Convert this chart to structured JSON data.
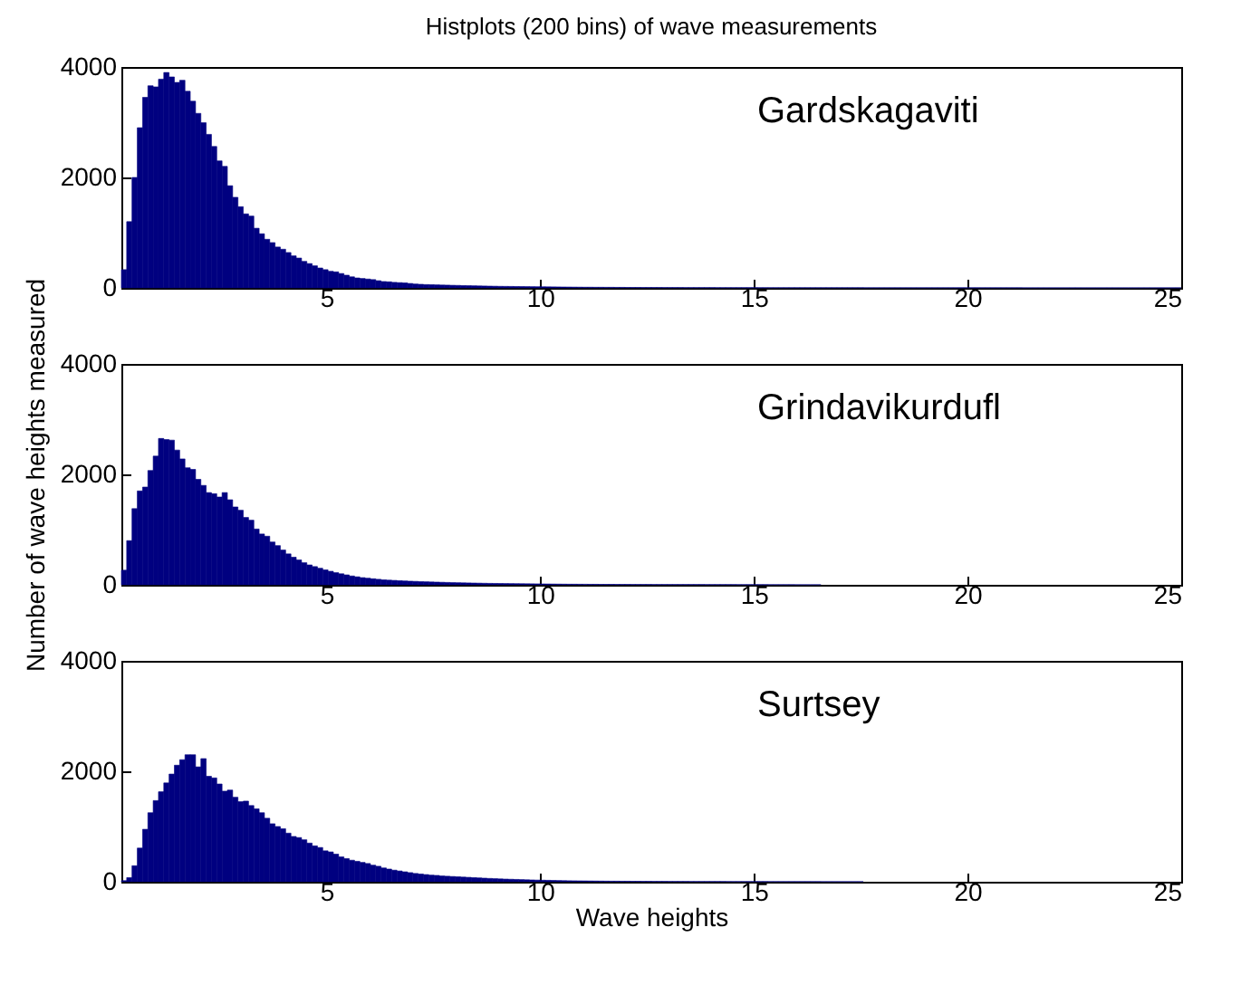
{
  "chart_data": [
    {
      "type": "histogram",
      "title": "Histplots (200 bins) of wave measurements",
      "annotations": [
        "Gardskagaviti"
      ],
      "color": "#000080",
      "xlim": [
        0.2,
        25
      ],
      "xticks": [
        5,
        10,
        15,
        20,
        25
      ],
      "ylim": [
        0,
        4000
      ],
      "yticks": [
        0,
        2000,
        4000
      ],
      "bins": [
        0.2,
        0.324,
        0.448,
        0.572,
        0.696,
        0.82,
        0.944,
        1.068,
        1.192,
        1.316,
        1.44,
        1.564,
        1.688,
        1.812,
        1.936,
        2.06,
        2.184,
        2.308,
        2.432,
        2.556,
        2.68,
        2.804,
        2.928,
        3.052,
        3.176,
        3.3,
        3.424,
        3.548,
        3.672,
        3.796,
        3.92,
        4.044,
        4.168,
        4.292,
        4.416,
        4.54,
        4.664,
        4.788,
        4.912,
        5.036,
        5.16,
        5.284,
        5.408,
        5.532,
        5.656,
        5.78,
        5.904,
        6.028,
        6.152,
        6.276,
        6.4,
        6.524,
        6.648,
        6.772,
        6.896,
        7.02,
        7.144,
        7.268,
        7.392,
        7.516,
        7.64,
        7.764,
        7.888,
        8.012,
        8.136,
        8.26,
        8.384,
        8.508,
        8.632,
        8.756,
        8.88,
        9.004,
        9.128,
        9.252,
        9.376,
        9.5,
        9.624,
        9.748,
        9.872,
        9.996,
        10.12,
        10.244,
        10.368,
        10.492,
        10.616,
        10.74,
        10.864,
        10.988,
        11.112,
        11.236,
        11.36,
        11.484,
        11.608,
        11.732,
        11.856,
        11.98,
        12.104,
        12.228,
        12.352,
        12.476,
        12.6,
        12.724,
        12.848,
        12.972,
        13.096,
        13.22,
        13.344,
        13.468,
        13.592,
        13.716,
        13.84,
        13.964,
        14.088,
        14.212,
        14.336,
        14.46,
        14.584,
        14.708,
        14.832,
        14.956,
        15.08,
        15.204,
        15.328,
        15.452,
        15.576,
        15.7,
        15.824,
        15.948,
        16.072,
        16.196,
        16.32,
        16.444,
        16.568,
        16.692,
        16.816,
        16.94,
        17.064,
        17.188,
        17.312,
        17.436,
        17.56,
        17.684,
        17.808,
        17.932,
        18.056,
        18.18,
        18.304,
        18.428,
        18.552,
        18.676,
        18.8,
        18.924,
        19.048,
        19.172,
        19.296,
        19.42,
        19.544,
        19.668,
        19.792,
        19.916,
        20.04,
        20.164,
        20.288,
        20.412,
        20.536,
        20.66,
        20.784,
        20.908,
        21.032,
        21.156,
        21.28,
        21.404,
        21.528,
        21.652,
        21.776,
        21.9,
        22.024,
        22.148,
        22.272,
        22.396,
        22.52,
        22.644,
        22.768,
        22.892,
        23.016,
        23.14,
        23.264,
        23.388,
        23.512,
        23.636,
        23.76,
        23.884,
        24.008,
        24.132,
        24.256,
        24.38,
        24.504,
        24.628,
        24.752,
        24.876,
        25
      ],
      "values": [
        330,
        1200,
        2000,
        2900,
        3450,
        3660,
        3640,
        3780,
        3900,
        3820,
        3720,
        3760,
        3560,
        3380,
        3160,
        2990,
        2780,
        2560,
        2300,
        2200,
        1850,
        1640,
        1470,
        1340,
        1300,
        1080,
        980,
        880,
        820,
        740,
        700,
        640,
        580,
        540,
        480,
        440,
        400,
        360,
        330,
        300,
        290,
        260,
        230,
        200,
        180,
        170,
        160,
        150,
        130,
        115,
        110,
        100,
        95,
        90,
        80,
        70,
        65,
        60,
        58,
        55,
        52,
        50,
        47,
        45,
        42,
        40,
        38,
        36,
        34,
        32,
        30,
        28,
        27,
        26,
        25,
        24,
        23,
        22,
        21,
        20,
        19,
        18,
        17,
        16,
        15,
        14,
        13,
        12,
        12,
        11,
        11,
        10,
        10,
        9,
        9,
        8,
        8,
        8,
        7,
        7,
        7,
        7,
        6,
        6,
        6,
        6,
        5,
        5,
        5,
        5,
        5,
        5,
        4,
        4,
        4,
        4,
        4,
        4,
        4,
        4,
        3,
        3,
        3,
        3,
        3,
        3,
        3,
        3,
        3,
        3,
        3,
        3,
        3,
        3,
        3,
        3,
        3,
        3,
        3,
        3,
        2,
        2,
        2,
        2,
        2,
        2,
        2,
        2,
        2,
        2,
        2,
        2,
        2,
        2,
        2,
        2,
        2,
        2,
        2,
        2,
        2,
        2,
        2,
        2,
        2,
        2,
        2,
        2,
        2,
        2,
        1,
        1,
        1,
        1,
        1,
        1,
        1,
        1,
        1,
        1,
        1,
        1,
        1,
        1,
        1,
        1,
        1,
        1,
        1,
        1,
        1,
        1,
        1,
        1,
        1,
        1,
        1,
        1,
        1,
        1
      ]
    },
    {
      "type": "histogram",
      "ylabel": "Number of wave heights measured",
      "annotations": [
        "Grindavikurdufl"
      ],
      "color": "#000080",
      "xlim": [
        0.2,
        25
      ],
      "xticks": [
        5,
        10,
        15,
        20,
        25
      ],
      "ylim": [
        0,
        4000
      ],
      "yticks": [
        0,
        2000,
        4000
      ],
      "bins": [
        0.2,
        0.324,
        0.448,
        0.572,
        0.696,
        0.82,
        0.944,
        1.068,
        1.192,
        1.316,
        1.44,
        1.564,
        1.688,
        1.812,
        1.936,
        2.06,
        2.184,
        2.308,
        2.432,
        2.556,
        2.68,
        2.804,
        2.928,
        3.052,
        3.176,
        3.3,
        3.424,
        3.548,
        3.672,
        3.796,
        3.92,
        4.044,
        4.168,
        4.292,
        4.416,
        4.54,
        4.664,
        4.788,
        4.912,
        5.036,
        5.16,
        5.284,
        5.408,
        5.532,
        5.656,
        5.78,
        5.904,
        6.028,
        6.152,
        6.276,
        6.4,
        6.524,
        6.648,
        6.772,
        6.896,
        7.02,
        7.144,
        7.268,
        7.392,
        7.516,
        7.64,
        7.764,
        7.888,
        8.012,
        8.136,
        8.26,
        8.384,
        8.508,
        8.632,
        8.756,
        8.88,
        9.004,
        9.128,
        9.252,
        9.376,
        9.5,
        9.624,
        9.748,
        9.872,
        9.996,
        10.12,
        10.244,
        10.368,
        10.492,
        10.616,
        10.74,
        10.864,
        10.988,
        11.112,
        11.236,
        11.36,
        11.484,
        11.608,
        11.732,
        11.856,
        11.98,
        12.104,
        12.228,
        12.352,
        12.476,
        12.6,
        12.724,
        12.848,
        12.972,
        13.096,
        13.22,
        13.344,
        13.468,
        13.592,
        13.716,
        13.84,
        13.964,
        14.088,
        14.212,
        14.336,
        14.46,
        14.584,
        14.708,
        14.832,
        14.956,
        15.08,
        15.204,
        15.328,
        15.452,
        15.576,
        15.7,
        15.824,
        15.948,
        16.072,
        16.196,
        16.32,
        16.444,
        16.568
      ],
      "values": [
        265,
        800,
        1380,
        1700,
        1770,
        2070,
        2330,
        2650,
        2630,
        2620,
        2440,
        2280,
        2120,
        2090,
        1910,
        1800,
        1670,
        1650,
        1590,
        1670,
        1540,
        1410,
        1350,
        1220,
        1170,
        1010,
        920,
        880,
        775,
        710,
        630,
        560,
        500,
        450,
        400,
        360,
        330,
        300,
        270,
        245,
        220,
        200,
        180,
        160,
        145,
        130,
        120,
        110,
        100,
        90,
        85,
        80,
        75,
        70,
        66,
        62,
        58,
        55,
        52,
        49,
        46,
        43,
        40,
        38,
        36,
        34,
        32,
        30,
        28,
        26,
        25,
        24,
        23,
        22,
        21,
        20,
        19,
        18,
        17,
        16,
        15,
        14,
        13,
        12,
        11,
        11,
        10,
        10,
        9,
        9,
        8,
        8,
        8,
        7,
        7,
        7,
        6,
        6,
        6,
        6,
        5,
        5,
        5,
        5,
        5,
        5,
        5,
        5,
        5,
        5,
        4,
        4,
        4,
        4,
        4,
        4,
        3,
        3,
        3,
        3,
        3,
        3,
        2,
        2,
        2,
        2,
        2,
        1,
        1,
        1,
        1,
        1
      ]
    },
    {
      "type": "histogram",
      "xlabel": "Wave heights",
      "annotations": [
        "Surtsey"
      ],
      "color": "#000080",
      "xlim": [
        0.2,
        25
      ],
      "xticks": [
        5,
        10,
        15,
        20,
        25
      ],
      "ylim": [
        0,
        4000
      ],
      "yticks": [
        0,
        2000,
        4000
      ],
      "bins": [
        0.2,
        0.324,
        0.448,
        0.572,
        0.696,
        0.82,
        0.944,
        1.068,
        1.192,
        1.316,
        1.44,
        1.564,
        1.688,
        1.812,
        1.936,
        2.06,
        2.184,
        2.308,
        2.432,
        2.556,
        2.68,
        2.804,
        2.928,
        3.052,
        3.176,
        3.3,
        3.424,
        3.548,
        3.672,
        3.796,
        3.92,
        4.044,
        4.168,
        4.292,
        4.416,
        4.54,
        4.664,
        4.788,
        4.912,
        5.036,
        5.16,
        5.284,
        5.408,
        5.532,
        5.656,
        5.78,
        5.904,
        6.028,
        6.152,
        6.276,
        6.4,
        6.524,
        6.648,
        6.772,
        6.896,
        7.02,
        7.144,
        7.268,
        7.392,
        7.516,
        7.64,
        7.764,
        7.888,
        8.012,
        8.136,
        8.26,
        8.384,
        8.508,
        8.632,
        8.756,
        8.88,
        9.004,
        9.128,
        9.252,
        9.376,
        9.5,
        9.624,
        9.748,
        9.872,
        9.996,
        10.12,
        10.244,
        10.368,
        10.492,
        10.616,
        10.74,
        10.864,
        10.988,
        11.112,
        11.236,
        11.36,
        11.484,
        11.608,
        11.732,
        11.856,
        11.98,
        12.104,
        12.228,
        12.352,
        12.476,
        12.6,
        12.724,
        12.848,
        12.972,
        13.096,
        13.22,
        13.344,
        13.468,
        13.592,
        13.716,
        13.84,
        13.964,
        14.088,
        14.212,
        14.336,
        14.46,
        14.584,
        14.708,
        14.832,
        14.956,
        15.08,
        15.204,
        15.328,
        15.452,
        15.576,
        15.7,
        15.824,
        15.948,
        16.072,
        16.196,
        16.32,
        16.444,
        16.568,
        16.692,
        16.816,
        16.94,
        17.064,
        17.188,
        17.312,
        17.436,
        17.56
      ],
      "values": [
        20,
        75,
        290,
        610,
        950,
        1250,
        1470,
        1630,
        1790,
        1950,
        2110,
        2210,
        2300,
        2300,
        2080,
        2230,
        1910,
        1880,
        1770,
        1640,
        1660,
        1530,
        1450,
        1460,
        1380,
        1320,
        1250,
        1150,
        1050,
        1000,
        960,
        880,
        820,
        800,
        760,
        700,
        650,
        620,
        560,
        540,
        500,
        450,
        420,
        390,
        370,
        350,
        330,
        300,
        280,
        250,
        230,
        210,
        195,
        180,
        165,
        150,
        140,
        130,
        120,
        115,
        105,
        100,
        95,
        90,
        85,
        80,
        75,
        70,
        65,
        60,
        56,
        52,
        48,
        45,
        42,
        39,
        36,
        33,
        30,
        28,
        26,
        24,
        22,
        20,
        18,
        17,
        16,
        15,
        14,
        13,
        12,
        11,
        10,
        10,
        9,
        9,
        8,
        8,
        7,
        7,
        6,
        6,
        6,
        5,
        5,
        5,
        5,
        4,
        4,
        4,
        4,
        4,
        4,
        4,
        3,
        3,
        3,
        3,
        3,
        3,
        3,
        3,
        2,
        2,
        2,
        2,
        2,
        2,
        2,
        2,
        2,
        2,
        1,
        1,
        1,
        1,
        1,
        1,
        1,
        1
      ]
    }
  ]
}
